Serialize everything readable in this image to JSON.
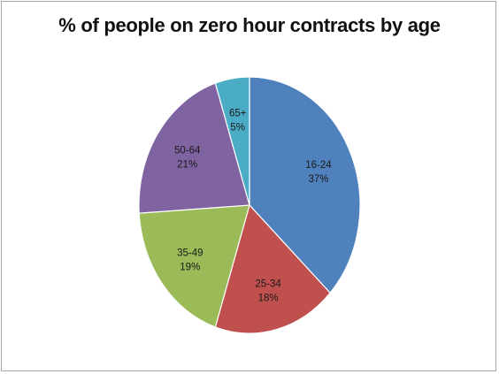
{
  "chart_data": {
    "type": "pie",
    "title": "% of people on zero hour contracts by age",
    "categories": [
      "16-24",
      "25-34",
      "35-49",
      "50-64",
      "65+"
    ],
    "values": [
      37,
      18,
      19,
      21,
      5
    ],
    "value_labels": [
      "37%",
      "18%",
      "19%",
      "21%",
      "5%"
    ],
    "colors": [
      "#4f81bd",
      "#c0504d",
      "#9bbb59",
      "#8064a2",
      "#4bacc6"
    ],
    "legend": "none",
    "grid": false
  }
}
